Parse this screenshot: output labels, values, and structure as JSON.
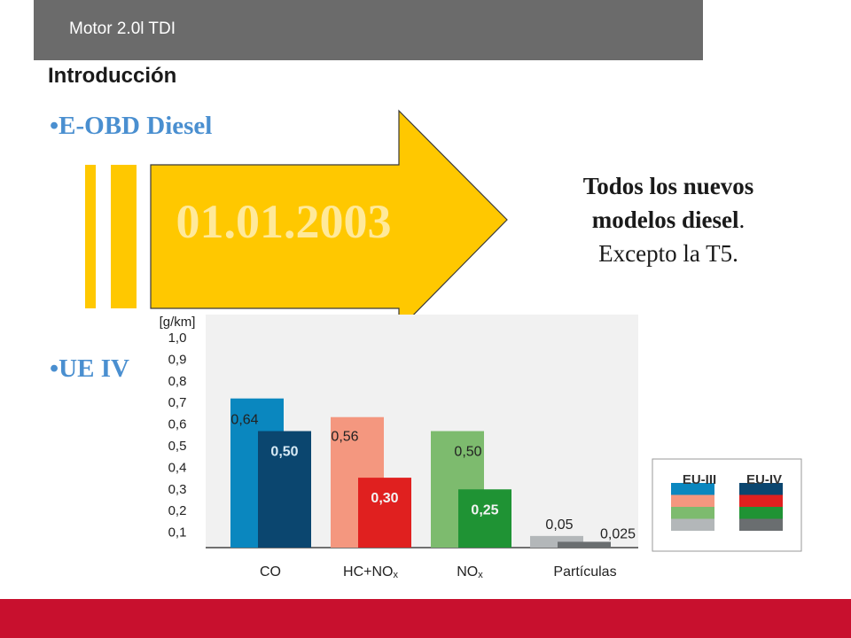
{
  "header": {
    "title": "Motor 2.0l TDI"
  },
  "section_title": "Introducción",
  "bullets": {
    "first": "•E-OBD Diesel",
    "second": "•UE IV"
  },
  "arrow": {
    "date": "01.01.2003",
    "color": "#ffc800"
  },
  "note": {
    "line1": "Todos los nuevos",
    "line2": "modelos diesel",
    "period": ".",
    "line3": "Excepto la T5."
  },
  "legend": {
    "eu3": "EU-III",
    "eu4": "EU-IV"
  },
  "chart_data": {
    "type": "bar",
    "unit_label": "[g/km]",
    "ylim": [
      0,
      1.0
    ],
    "ytick_labels": [
      "1,0",
      "0,9",
      "0,8",
      "0,7",
      "0,6",
      "0,5",
      "0,4",
      "0,3",
      "0,2",
      "0,1"
    ],
    "categories": [
      {
        "label": "CO",
        "sub": ""
      },
      {
        "label": "HC+NO",
        "sub": "x"
      },
      {
        "label": "NO",
        "sub": "x"
      },
      {
        "label": "Partículas",
        "sub": ""
      }
    ],
    "series": [
      {
        "name": "EU-III",
        "values": [
          0.64,
          0.56,
          0.5,
          0.05
        ],
        "labels": [
          "0,64",
          "0,56",
          "0,50",
          "0,05"
        ],
        "colors": [
          "#0a87bf",
          "#f4977f",
          "#7dbb6e",
          "#b3b7b9"
        ]
      },
      {
        "name": "EU-IV",
        "values": [
          0.5,
          0.3,
          0.25,
          0.025
        ],
        "labels": [
          "0,50",
          "0,30",
          "0,25",
          "0,025"
        ],
        "colors": [
          "#0b466f",
          "#e0201f",
          "#1f9334",
          "#6a6e70"
        ]
      }
    ]
  }
}
